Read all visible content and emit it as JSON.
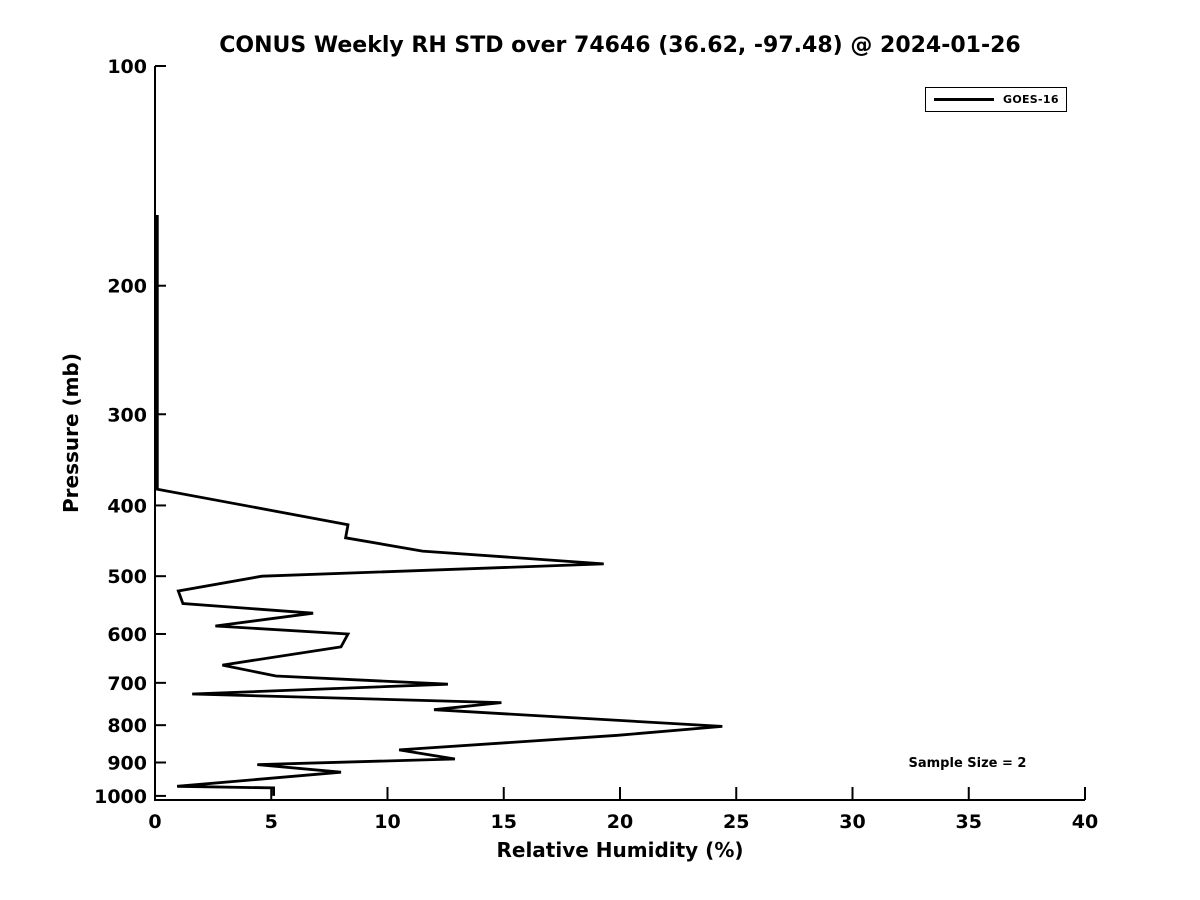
{
  "chart_data": {
    "type": "line",
    "title": "CONUS Weekly RH STD over 74646 (36.62, -97.48) @ 2024-01-26",
    "xlabel": "Relative Humidity (%)",
    "ylabel": "Pressure (mb)",
    "xlim": [
      0,
      40
    ],
    "x_ticks": [
      0,
      5,
      10,
      15,
      20,
      25,
      30,
      35,
      40
    ],
    "ylim_bottom": 1013,
    "ylim_top": 100,
    "y_scale": "log",
    "y_ticks": [
      100,
      200,
      300,
      400,
      500,
      600,
      700,
      800,
      900,
      1000
    ],
    "grid": false,
    "legend_position": "upper right",
    "line_color": "#000000",
    "line_width": 2.8,
    "annotation": "Sample Size = 2",
    "series": [
      {
        "name": "GOES-16",
        "color": "#000000",
        "points_rh_pressure": [
          [
            0.1,
            160
          ],
          [
            0.1,
            380
          ],
          [
            8.3,
            425
          ],
          [
            8.2,
            443
          ],
          [
            11.5,
            462
          ],
          [
            19.3,
            481
          ],
          [
            4.6,
            500
          ],
          [
            1.0,
            524
          ],
          [
            1.2,
            545
          ],
          [
            6.8,
            562
          ],
          [
            2.6,
            585
          ],
          [
            8.3,
            600
          ],
          [
            8.0,
            625
          ],
          [
            2.9,
            662
          ],
          [
            5.2,
            685
          ],
          [
            12.6,
            703
          ],
          [
            1.6,
            725
          ],
          [
            14.9,
            745
          ],
          [
            12.0,
            762
          ],
          [
            24.4,
            803
          ],
          [
            19.9,
            826
          ],
          [
            10.5,
            865
          ],
          [
            12.9,
            890
          ],
          [
            4.4,
            906
          ],
          [
            8.0,
            928
          ],
          [
            0.95,
            970
          ],
          [
            5.1,
            975
          ],
          [
            5.1,
            1000
          ]
        ]
      }
    ]
  }
}
